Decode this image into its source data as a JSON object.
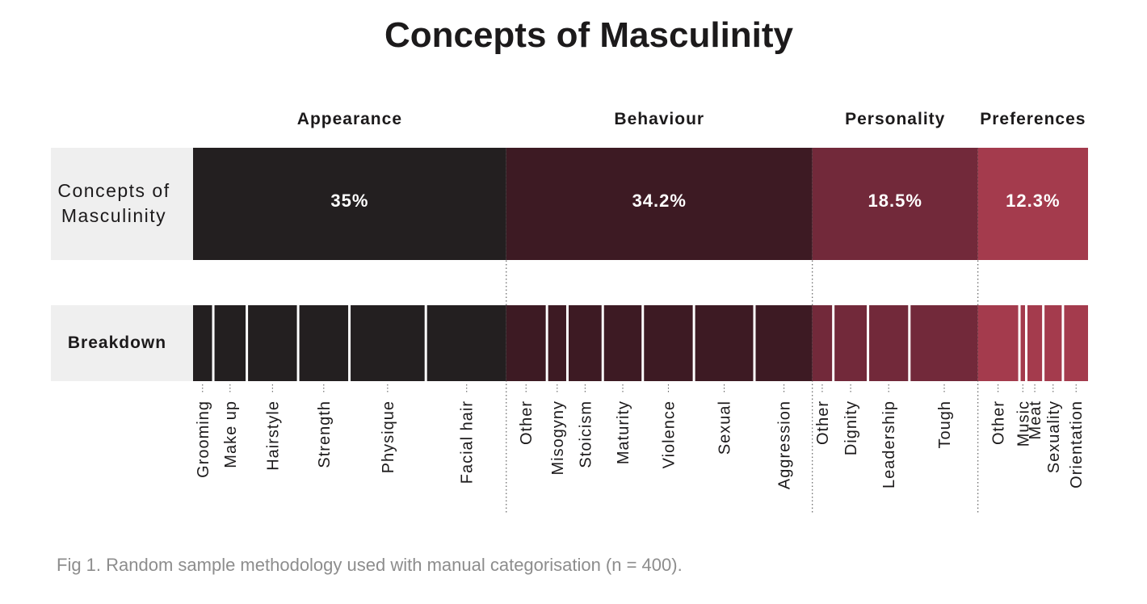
{
  "title": "Concepts of Masculinity",
  "caption": "Fig 1. Random sample methodology used with manual categorisation (n = 400).",
  "chart_data": {
    "type": "bar",
    "orientation": "horizontal-stacked",
    "rows": {
      "main_label": [
        "Concepts of",
        "Masculinity"
      ],
      "breakdown_label": "Breakdown"
    },
    "categories": [
      {
        "name": "Appearance",
        "value": 35,
        "label": "35%",
        "color": "#231f20",
        "breakdown": [
          {
            "name": "Grooming",
            "value": 2.3
          },
          {
            "name": "Make up",
            "value": 3.6
          },
          {
            "name": "Hairstyle",
            "value": 5.5
          },
          {
            "name": "Strength",
            "value": 5.5
          },
          {
            "name": "Physique",
            "value": 8.2
          },
          {
            "name": "Facial hair",
            "value": 8.5
          }
        ]
      },
      {
        "name": "Behaviour",
        "value": 34.2,
        "label": "34.2%",
        "color": "#3d1a23",
        "breakdown": [
          {
            "name": "Other",
            "value": 4.5
          },
          {
            "name": "Misogyny",
            "value": 2.2
          },
          {
            "name": "Stoicism",
            "value": 3.8
          },
          {
            "name": "Maturity",
            "value": 4.3
          },
          {
            "name": "Violence",
            "value": 5.5
          },
          {
            "name": "Sexual",
            "value": 6.5
          },
          {
            "name": "Aggression",
            "value": 6.1
          }
        ]
      },
      {
        "name": "Personality",
        "value": 18.5,
        "label": "18.5%",
        "color": "#72293a",
        "breakdown": [
          {
            "name": "Other",
            "value": 2.3
          },
          {
            "name": "Dignity",
            "value": 3.6
          },
          {
            "name": "Leadership",
            "value": 4.3
          },
          {
            "name": "Tough",
            "value": 7.0
          }
        ]
      },
      {
        "name": "Preferences",
        "value": 12.3,
        "label": "12.3%",
        "color": "#a43b4d",
        "breakdown": [
          {
            "name": "Other",
            "value": 5.0
          },
          {
            "name": "Music",
            "value": 0.8
          },
          {
            "name": "Meat",
            "value": 2.0
          },
          {
            "name": "Sexuality",
            "value": 2.3
          },
          {
            "name": "Orientation",
            "value": 2.8
          }
        ]
      }
    ],
    "grid": false,
    "legend": "none"
  }
}
